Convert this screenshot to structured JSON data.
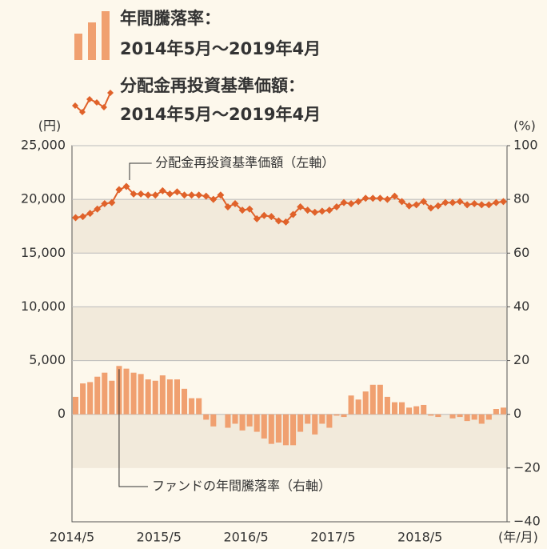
{
  "chart_data": {
    "type": "bar_line_dual_axis",
    "categories": [
      "2014/5",
      null,
      null,
      null,
      null,
      null,
      null,
      null,
      null,
      null,
      null,
      null,
      "2015/5",
      null,
      null,
      null,
      null,
      null,
      null,
      null,
      null,
      null,
      null,
      null,
      "2016/5",
      null,
      null,
      null,
      null,
      null,
      null,
      null,
      null,
      null,
      null,
      null,
      "2017/5",
      null,
      null,
      null,
      null,
      null,
      null,
      null,
      null,
      null,
      null,
      null,
      "2018/5",
      null,
      null,
      null,
      null,
      null,
      null,
      null,
      null,
      null,
      null,
      null
    ],
    "x_label": "(年/月)",
    "y_label": "(円)",
    "y2_label": "(%)",
    "ylim": [
      -10000,
      25000
    ],
    "yticks": [
      0,
      {
        "value": 5000,
        "label": "5,000"
      },
      {
        "value": 10000,
        "label": "10,000"
      },
      {
        "value": 15000,
        "label": "15,000"
      },
      {
        "value": 20000,
        "label": "20,000"
      },
      {
        "value": 25000,
        "label": "25,000"
      }
    ],
    "y2lim": [
      -40,
      100
    ],
    "y2ticks": [
      {
        "value": -40,
        "label": "−40"
      },
      {
        "value": -20,
        "label": "−20"
      },
      0,
      20,
      40,
      60,
      80,
      100
    ],
    "grid": true,
    "series": [
      {
        "name": "年間騰落率：",
        "period": "2014年5月～2019年4月",
        "type": "bar",
        "axis": "y2",
        "color": "#f0a070",
        "annotation": "ファンドの年間騰落率（右軸）",
        "values": [
          6.5,
          11.5,
          12,
          14,
          15.5,
          12.5,
          18,
          17,
          15.5,
          15,
          13,
          12.5,
          14.5,
          13,
          13,
          9.5,
          6,
          6,
          -2,
          -4.5,
          0,
          -5,
          -3.5,
          -6,
          -4.5,
          -6.5,
          -9,
          -11,
          -10.5,
          -11.5,
          -11.5,
          -6.5,
          -3.5,
          -7.5,
          -3.5,
          -5,
          -0.5,
          -1,
          7,
          5.5,
          8.5,
          11,
          11,
          6.5,
          4.5,
          4.5,
          2.5,
          3,
          3.5,
          -0.5,
          -1,
          0,
          -1.5,
          -1,
          -2.5,
          -2,
          -3.5,
          -2,
          2,
          2.5
        ]
      },
      {
        "name": "分配金再投資基準価額：",
        "period": "2014年5月～2019年4月",
        "type": "line",
        "color": "#e0622a",
        "annotation": "分配金再投資基準価額（左軸）",
        "values": [
          18300,
          18400,
          18700,
          19100,
          19600,
          19700,
          20900,
          21200,
          20500,
          20500,
          20400,
          20400,
          20800,
          20500,
          20700,
          20400,
          20400,
          20400,
          20300,
          20000,
          20400,
          19300,
          19600,
          19000,
          19100,
          18200,
          18500,
          18400,
          18000,
          17900,
          18600,
          19300,
          19000,
          18800,
          18900,
          19000,
          19300,
          19700,
          19600,
          19800,
          20100,
          20100,
          20100,
          20000,
          20300,
          19800,
          19400,
          19500,
          19800,
          19200,
          19400,
          19700,
          19700,
          19800,
          19500,
          19600,
          19500,
          19500,
          19700,
          19800
        ]
      }
    ]
  }
}
